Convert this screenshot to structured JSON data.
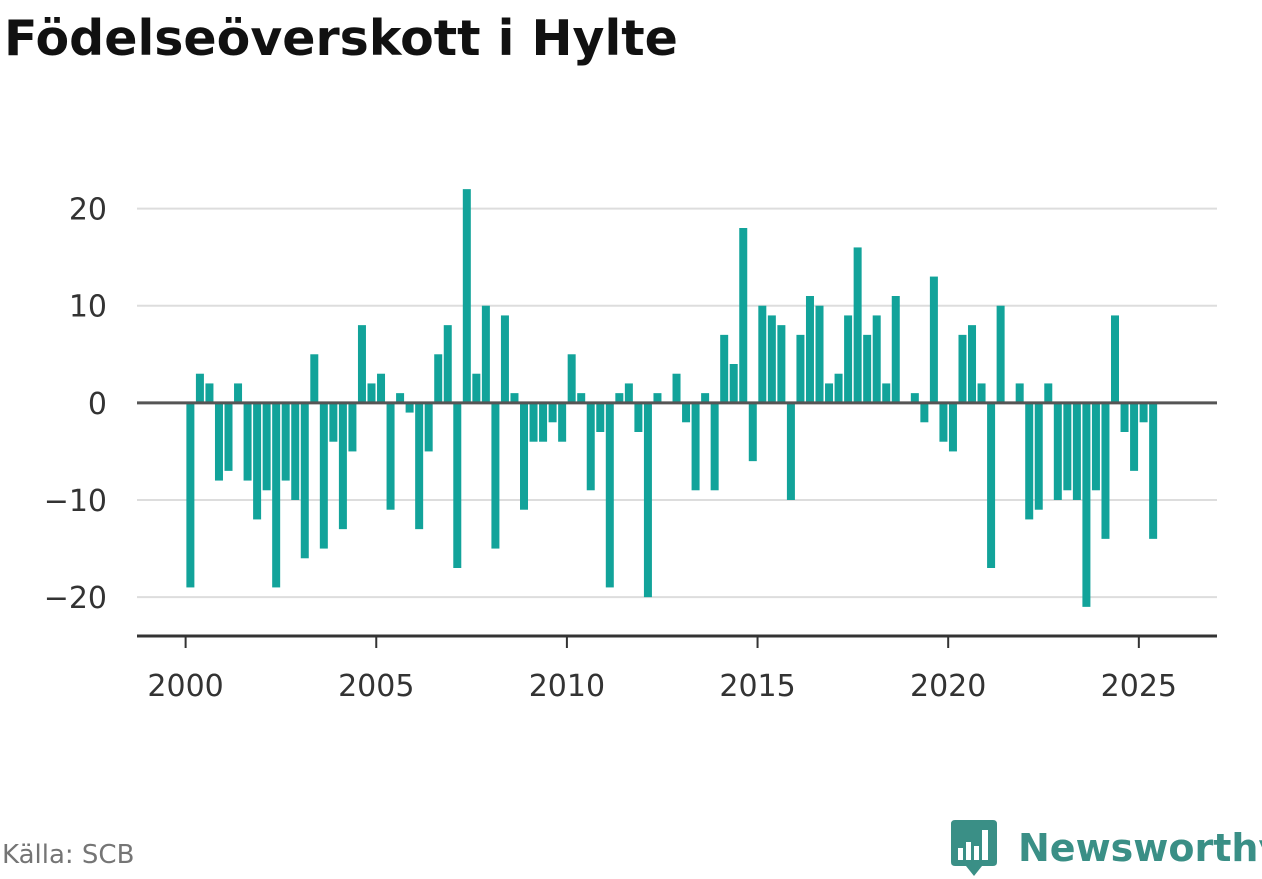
{
  "title": "Födelseöverskott i Hylte",
  "source": "Källa: SCB",
  "brand": {
    "name": "Newsworthy",
    "icon": "newsworthy-logo-icon",
    "color": "#3a8f86"
  },
  "colors": {
    "bar": "#12a39a",
    "grid": "#dddddd",
    "zero_line": "#555555",
    "axis": "#333333"
  },
  "chart_data": {
    "type": "bar",
    "title": "Födelseöverskott i Hylte",
    "xlabel": "",
    "ylabel": "",
    "x_ticks": [
      "2000",
      "2005",
      "2010",
      "2015",
      "2020",
      "2025"
    ],
    "y_ticks": [
      20,
      10,
      0,
      -10,
      -20
    ],
    "y_tick_labels": [
      "20",
      "10",
      "0",
      "−10",
      "−20"
    ],
    "ylim": [
      -24,
      25
    ],
    "xlim": [
      1998.725,
      2027.05
    ],
    "grid": true,
    "legend": "none",
    "x": [
      2000.125,
      2000.375,
      2000.625,
      2000.875,
      2001.125,
      2001.375,
      2001.625,
      2001.875,
      2002.125,
      2002.375,
      2002.625,
      2002.875,
      2003.125,
      2003.375,
      2003.625,
      2003.875,
      2004.125,
      2004.375,
      2004.625,
      2004.875,
      2005.125,
      2005.375,
      2005.625,
      2005.875,
      2006.125,
      2006.375,
      2006.625,
      2006.875,
      2007.125,
      2007.375,
      2007.625,
      2007.875,
      2008.125,
      2008.375,
      2008.625,
      2008.875,
      2009.125,
      2009.375,
      2009.625,
      2009.875,
      2010.125,
      2010.375,
      2010.625,
      2010.875,
      2011.125,
      2011.375,
      2011.625,
      2011.875,
      2012.125,
      2012.375,
      2012.625,
      2012.875,
      2013.125,
      2013.375,
      2013.625,
      2013.875,
      2014.125,
      2014.375,
      2014.625,
      2014.875,
      2015.125,
      2015.375,
      2015.625,
      2015.875,
      2016.125,
      2016.375,
      2016.625,
      2016.875,
      2017.125,
      2017.375,
      2017.625,
      2017.875,
      2018.125,
      2018.375,
      2018.625,
      2018.875,
      2019.125,
      2019.375,
      2019.625,
      2019.875,
      2020.125,
      2020.375,
      2020.625,
      2020.875,
      2021.125,
      2021.375,
      2021.625,
      2021.875,
      2022.125,
      2022.375,
      2022.625,
      2022.875,
      2023.125,
      2023.375,
      2023.625,
      2023.875,
      2024.125,
      2024.375,
      2024.625,
      2024.875,
      2025.125,
      2025.375
    ],
    "values": [
      -19,
      3,
      2,
      -8,
      -7,
      2,
      -8,
      -12,
      -9,
      -19,
      -8,
      -10,
      -16,
      5,
      -15,
      -4,
      -13,
      -5,
      8,
      2,
      3,
      -11,
      1,
      -1,
      -13,
      -5,
      5,
      8,
      -17,
      22,
      3,
      10,
      -15,
      9,
      1,
      -11,
      -4,
      -4,
      -2,
      -4,
      5,
      1,
      -9,
      -3,
      -19,
      1,
      2,
      -3,
      -20,
      1,
      0,
      3,
      -2,
      -9,
      1,
      -9,
      7,
      4,
      18,
      -6,
      10,
      9,
      8,
      -10,
      7,
      11,
      10,
      2,
      3,
      9,
      16,
      7,
      9,
      2,
      11,
      0,
      1,
      -2,
      13,
      -4,
      -5,
      7,
      8,
      2,
      -17,
      10,
      0,
      2,
      -12,
      -11,
      2,
      -10,
      -9,
      -10,
      -21,
      -9,
      -14,
      9,
      -3,
      -7,
      -2,
      -14
    ]
  }
}
